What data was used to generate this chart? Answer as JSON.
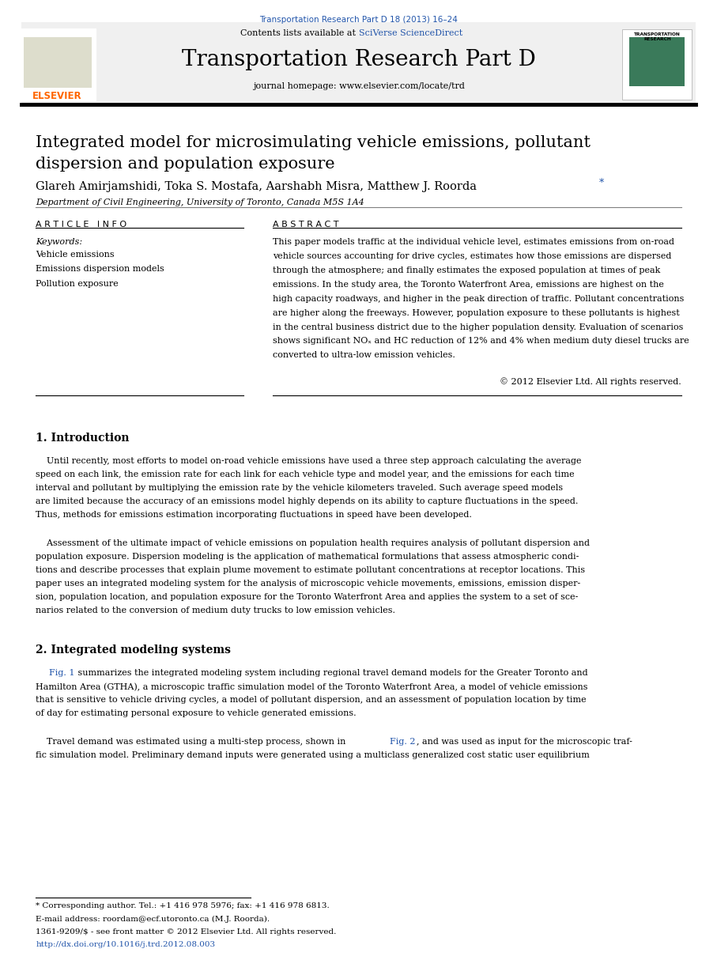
{
  "page_width": 9.07,
  "page_height": 12.38,
  "background_color": "#ffffff",
  "journal_ref": "Transportation Research Part D 18 (2013) 16–24",
  "journal_ref_color": "#2255aa",
  "header_bg_color": "#f0f0f0",
  "header_text1": "Contents lists available at ",
  "header_sciverse": "SciVerse ScienceDirect",
  "header_sciverse_color": "#2255aa",
  "journal_title": "Transportation Research Part D",
  "journal_homepage": "journal homepage: www.elsevier.com/locate/trd",
  "elsevier_color": "#ff6600",
  "article_title_line1": "Integrated model for microsimulating vehicle emissions, pollutant",
  "article_title_line2": "dispersion and population exposure",
  "authors": "Glareh Amirjamshidi, Toka S. Mostafa, Aarshabh Misra, Matthew J. Roorda",
  "author_star": "*",
  "affiliation": "Department of Civil Engineering, University of Toronto, Canada M5S 1A4",
  "article_info_header": "A R T I C L E   I N F O",
  "abstract_header": "A B S T R A C T",
  "keywords_label": "Keywords:",
  "keywords": [
    "Vehicle emissions",
    "Emissions dispersion models",
    "Pollution exposure"
  ],
  "copyright": "© 2012 Elsevier Ltd. All rights reserved.",
  "section1_title": "1. Introduction",
  "section2_title": "2. Integrated modeling systems",
  "footnote_star": "* Corresponding author. Tel.: +1 416 978 5976; fax: +1 416 978 6813.",
  "footnote_email": "E-mail address: roordam@ecf.utoronto.ca (M.J. Roorda).",
  "footnote_issn": "1361-9209/$ - see front matter © 2012 Elsevier Ltd. All rights reserved.",
  "footnote_doi": "http://dx.doi.org/10.1016/j.trd.2012.08.003",
  "doi_color": "#2255aa"
}
